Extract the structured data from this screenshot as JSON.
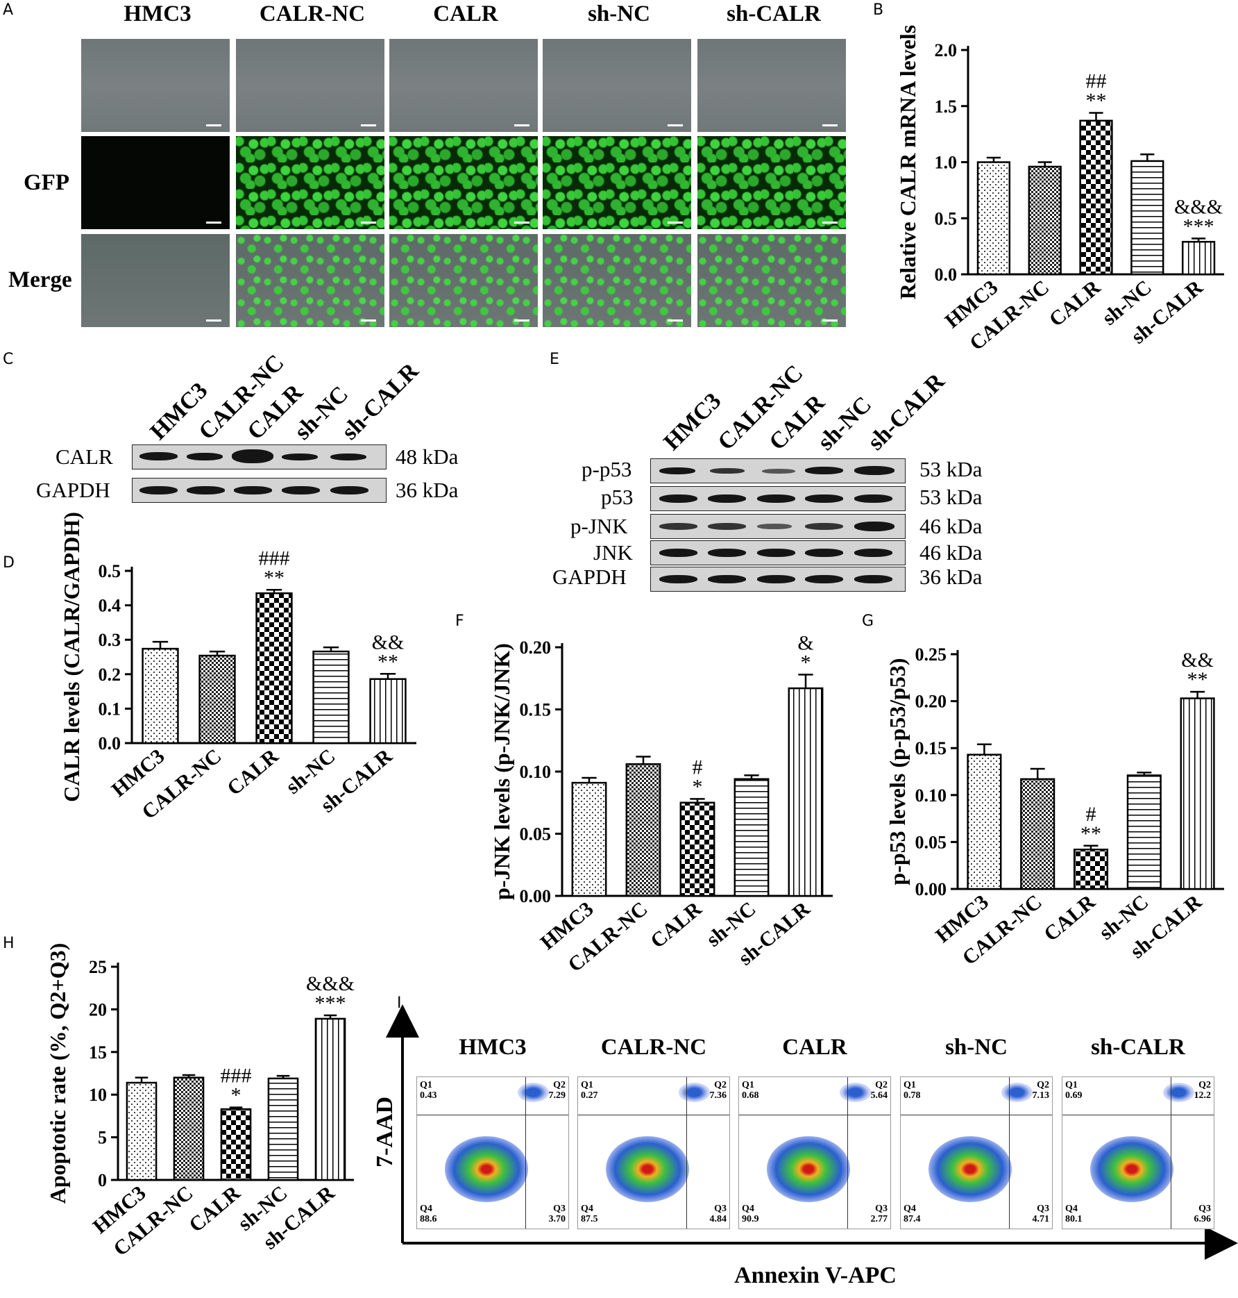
{
  "panel_letters": {
    "A": "A",
    "B": "B",
    "C": "C",
    "D": "D",
    "E": "E",
    "F": "F",
    "G": "G",
    "H": "H",
    "I": "I"
  },
  "panelA": {
    "columns": [
      "HMC3",
      "CALR-NC",
      "CALR",
      "sh-NC",
      "sh-CALR"
    ],
    "row_labels": [
      "GFP",
      "Merge"
    ]
  },
  "panelC": {
    "lanes": [
      "HMC3",
      "CALR-NC",
      "CALR",
      "sh-NC",
      "sh-CALR"
    ],
    "rows": [
      {
        "protein": "CALR",
        "kda": "48 kDa"
      },
      {
        "protein": "GAPDH",
        "kda": "36 kDa"
      }
    ]
  },
  "panelE": {
    "lanes": [
      "HMC3",
      "CALR-NC",
      "CALR",
      "sh-NC",
      "sh-CALR"
    ],
    "rows": [
      {
        "protein": "p-p53",
        "kda": "53 kDa"
      },
      {
        "protein": "p53",
        "kda": "53 kDa"
      },
      {
        "protein": "p-JNK",
        "kda": "46 kDa"
      },
      {
        "protein": "JNK",
        "kda": "46 kDa"
      },
      {
        "protein": "GAPDH",
        "kda": "36 kDa"
      }
    ]
  },
  "chart_data": [
    {
      "id": "B",
      "type": "bar",
      "categories": [
        "HMC3",
        "CALR-NC",
        "CALR",
        "sh-NC",
        "sh-CALR"
      ],
      "values": [
        1.0,
        0.96,
        1.37,
        1.01,
        0.29
      ],
      "errors": [
        0.04,
        0.04,
        0.07,
        0.06,
        0.03
      ],
      "annotations": [
        "",
        "",
        "##\n**",
        "",
        "&&&\n***"
      ],
      "ylabel": "Relative CALR mRNA levels",
      "ylim": [
        0,
        2.0
      ],
      "ticks": [
        "0.0",
        "0.5",
        "1.0",
        "1.5",
        "2.0"
      ]
    },
    {
      "id": "D",
      "type": "bar",
      "categories": [
        "HMC3",
        "CALR-NC",
        "CALR",
        "sh-NC",
        "sh-CALR"
      ],
      "values": [
        0.274,
        0.254,
        0.435,
        0.266,
        0.186
      ],
      "errors": [
        0.02,
        0.012,
        0.01,
        0.012,
        0.015
      ],
      "annotations": [
        "",
        "",
        "###\n**",
        "",
        "&&\n**"
      ],
      "ylabel": "CALR levels (CALR/GAPDH)",
      "ylim": [
        0,
        0.5
      ],
      "ticks": [
        "0.0",
        "0.1",
        "0.2",
        "0.3",
        "0.4",
        "0.5"
      ]
    },
    {
      "id": "F",
      "type": "bar",
      "categories": [
        "HMC3",
        "CALR-NC",
        "CALR",
        "sh-NC",
        "sh-CALR"
      ],
      "values": [
        0.091,
        0.106,
        0.075,
        0.094,
        0.167
      ],
      "errors": [
        0.004,
        0.006,
        0.003,
        0.003,
        0.011
      ],
      "annotations": [
        "",
        "",
        "#\n*",
        "",
        "&\n*"
      ],
      "ylabel": "p-JNK levels (p-JNK/JNK)",
      "ylim": [
        0,
        0.2
      ],
      "ticks": [
        "0.00",
        "0.05",
        "0.10",
        "0.15",
        "0.20"
      ]
    },
    {
      "id": "G",
      "type": "bar",
      "categories": [
        "HMC3",
        "CALR-NC",
        "CALR",
        "sh-NC",
        "sh-CALR"
      ],
      "values": [
        0.143,
        0.117,
        0.042,
        0.121,
        0.203
      ],
      "errors": [
        0.011,
        0.011,
        0.004,
        0.003,
        0.007
      ],
      "annotations": [
        "",
        "",
        "#\n**",
        "",
        "&&\n**"
      ],
      "ylabel": "p-p53 levels (p-p53/p53)",
      "ylim": [
        0,
        0.25
      ],
      "ticks": [
        "0.00",
        "0.05",
        "0.10",
        "0.15",
        "0.20",
        "0.25"
      ]
    },
    {
      "id": "H",
      "type": "bar",
      "categories": [
        "HMC3",
        "CALR-NC",
        "CALR",
        "sh-NC",
        "sh-CALR"
      ],
      "values": [
        11.4,
        12.0,
        8.3,
        11.9,
        18.9
      ],
      "errors": [
        0.6,
        0.3,
        0.2,
        0.3,
        0.4
      ],
      "annotations": [
        "",
        "",
        "###\n*",
        "",
        "&&&\n***"
      ],
      "ylabel": "Apoptotic rate (%, Q2+Q3)",
      "ylim": [
        0,
        25
      ],
      "ticks": [
        "0",
        "5",
        "10",
        "15",
        "20",
        "25"
      ]
    }
  ],
  "panelI": {
    "ylabel": "7-AAD",
    "xlabel": "Annexin V-APC",
    "plots": [
      {
        "title": "HMC3",
        "q1": "0.43",
        "q2": "7.29",
        "q3": "3.70",
        "q4": "88.6"
      },
      {
        "title": "CALR-NC",
        "q1": "0.27",
        "q2": "7.36",
        "q3": "4.84",
        "q4": "87.5"
      },
      {
        "title": "CALR",
        "q1": "0.68",
        "q2": "5.64",
        "q3": "2.77",
        "q4": "90.9"
      },
      {
        "title": "sh-NC",
        "q1": "0.78",
        "q2": "7.13",
        "q3": "4.71",
        "q4": "87.4"
      },
      {
        "title": "sh-CALR",
        "q1": "0.69",
        "q2": "12.2",
        "q3": "6.96",
        "q4": "80.1"
      }
    ],
    "quadrant_names": {
      "q1": "Q1",
      "q2": "Q2",
      "q3": "Q3",
      "q4": "Q4"
    }
  }
}
